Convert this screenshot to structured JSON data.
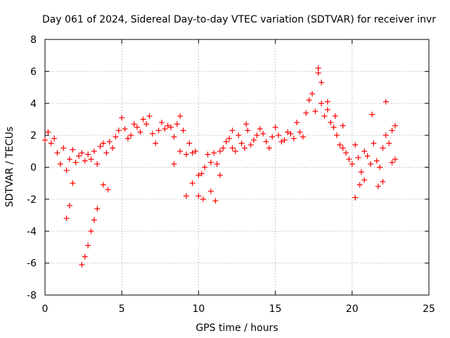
{
  "chart_data": {
    "type": "scatter",
    "title": "Day 061 of 2024, Sidereal Day-to-day VTEC variation (SDTVAR) for receiver invr",
    "xlabel": "GPS time / hours",
    "ylabel": "SDTVAR / TECUs",
    "xlim": [
      0,
      25
    ],
    "ylim": [
      -8,
      8
    ],
    "xticks": [
      0,
      5,
      10,
      15,
      20,
      25
    ],
    "yticks": [
      -8,
      -6,
      -4,
      -2,
      0,
      2,
      4,
      6,
      8
    ],
    "xtick_labels": [
      "0",
      "5",
      "10",
      "15",
      "20",
      "25"
    ],
    "ytick_labels": [
      "-8",
      "-6",
      "-4",
      "-2",
      "0",
      "2",
      "4",
      "6",
      "8"
    ],
    "grid": true,
    "marker": "+",
    "color": "#ff0000",
    "series": [
      {
        "name": "SDTVAR",
        "x": [
          0.0,
          0.2,
          0.4,
          0.6,
          0.8,
          1.0,
          1.2,
          1.4,
          1.6,
          1.8,
          2.0,
          2.2,
          2.4,
          2.6,
          2.8,
          3.0,
          3.2,
          3.4,
          3.6,
          3.8,
          4.0,
          4.2,
          4.4,
          4.6,
          4.8,
          5.0,
          5.2,
          5.4,
          5.6,
          5.8,
          6.0,
          6.2,
          6.4,
          6.6,
          6.8,
          7.0,
          7.2,
          7.4,
          7.6,
          7.8,
          8.0,
          8.2,
          8.4,
          8.6,
          8.8,
          9.0,
          9.2,
          9.4,
          9.6,
          9.8,
          10.0,
          10.2,
          10.4,
          10.6,
          10.8,
          11.0,
          11.2,
          11.4,
          11.6,
          11.8,
          12.0,
          12.2,
          12.4,
          12.6,
          12.8,
          13.0,
          13.2,
          13.4,
          13.6,
          13.8,
          14.0,
          14.2,
          14.4,
          14.6,
          14.8,
          15.0,
          15.2,
          15.4,
          15.6,
          15.8,
          16.0,
          16.2,
          16.4,
          16.6,
          16.8,
          17.0,
          17.2,
          17.4,
          17.6,
          17.8,
          18.0,
          18.2,
          18.4,
          18.6,
          18.8,
          19.0,
          19.2,
          19.4,
          19.6,
          19.8,
          20.0,
          20.2,
          20.4,
          20.6,
          20.8,
          21.0,
          21.2,
          21.4,
          21.6,
          21.8,
          22.0,
          22.2,
          22.4,
          22.6,
          22.8
        ],
        "values": [
          1.7,
          2.2,
          1.5,
          1.8,
          0.9,
          0.2,
          1.2,
          -0.2,
          0.5,
          1.1,
          0.3,
          0.7,
          0.9,
          0.4,
          0.8,
          0.5,
          1.0,
          0.2,
          1.3,
          1.5,
          0.9,
          1.6,
          1.2,
          1.9,
          2.3,
          3.1,
          2.4,
          1.8,
          2.0,
          2.7,
          2.5,
          2.2,
          3.0,
          2.7,
          3.2,
          2.1,
          1.5,
          2.3,
          2.8,
          2.4,
          2.6,
          2.5,
          1.9,
          2.7,
          3.2,
          2.3,
          0.8,
          1.5,
          0.9,
          1.0,
          -0.5,
          -0.4,
          0.0,
          0.8,
          0.3,
          0.9,
          0.2,
          1.0,
          1.2,
          1.6,
          1.8,
          1.2,
          1.0,
          2.0,
          1.5,
          1.2,
          2.3,
          1.4,
          1.7,
          2.0,
          2.4,
          2.1,
          1.6,
          1.2,
          1.9,
          2.5,
          2.0,
          1.6,
          1.7,
          2.2,
          2.1,
          1.8,
          2.8,
          2.2,
          1.9,
          3.4,
          4.2,
          4.6,
          3.5,
          6.2,
          4.0,
          3.2,
          3.6,
          2.8,
          2.5,
          2.0,
          1.4,
          1.2,
          0.9,
          0.5,
          0.2,
          1.4,
          0.6,
          -0.3,
          1.0,
          0.7,
          0.2,
          1.5,
          0.4,
          0.0,
          1.2,
          2.0,
          1.5,
          2.3,
          2.6
        ],
        "extra_points": [
          {
            "x": 1.4,
            "y": -3.2
          },
          {
            "x": 1.6,
            "y": -2.4
          },
          {
            "x": 1.8,
            "y": -1.0
          },
          {
            "x": 2.4,
            "y": -6.1
          },
          {
            "x": 2.6,
            "y": -5.6
          },
          {
            "x": 2.8,
            "y": -4.9
          },
          {
            "x": 3.0,
            "y": -4.0
          },
          {
            "x": 3.2,
            "y": -3.3
          },
          {
            "x": 3.4,
            "y": -2.6
          },
          {
            "x": 3.8,
            "y": -1.1
          },
          {
            "x": 4.1,
            "y": -1.4
          },
          {
            "x": 8.4,
            "y": 0.2
          },
          {
            "x": 8.8,
            "y": 1.0
          },
          {
            "x": 9.2,
            "y": -1.8
          },
          {
            "x": 9.6,
            "y": -1.0
          },
          {
            "x": 10.0,
            "y": -1.8
          },
          {
            "x": 10.3,
            "y": -2.0
          },
          {
            "x": 10.8,
            "y": -1.5
          },
          {
            "x": 11.1,
            "y": -2.1
          },
          {
            "x": 11.4,
            "y": -0.5
          },
          {
            "x": 12.2,
            "y": 2.3
          },
          {
            "x": 13.1,
            "y": 2.7
          },
          {
            "x": 18.0,
            "y": 5.3
          },
          {
            "x": 17.8,
            "y": 5.9
          },
          {
            "x": 18.4,
            "y": 4.1
          },
          {
            "x": 18.9,
            "y": 3.2
          },
          {
            "x": 19.4,
            "y": 2.6
          },
          {
            "x": 20.2,
            "y": -1.9
          },
          {
            "x": 20.5,
            "y": -1.1
          },
          {
            "x": 20.8,
            "y": -0.8
          },
          {
            "x": 21.3,
            "y": 3.3
          },
          {
            "x": 21.7,
            "y": -1.2
          },
          {
            "x": 22.0,
            "y": -0.9
          },
          {
            "x": 22.2,
            "y": 4.1
          },
          {
            "x": 22.6,
            "y": 0.3
          },
          {
            "x": 22.8,
            "y": 0.5
          }
        ]
      }
    ]
  }
}
